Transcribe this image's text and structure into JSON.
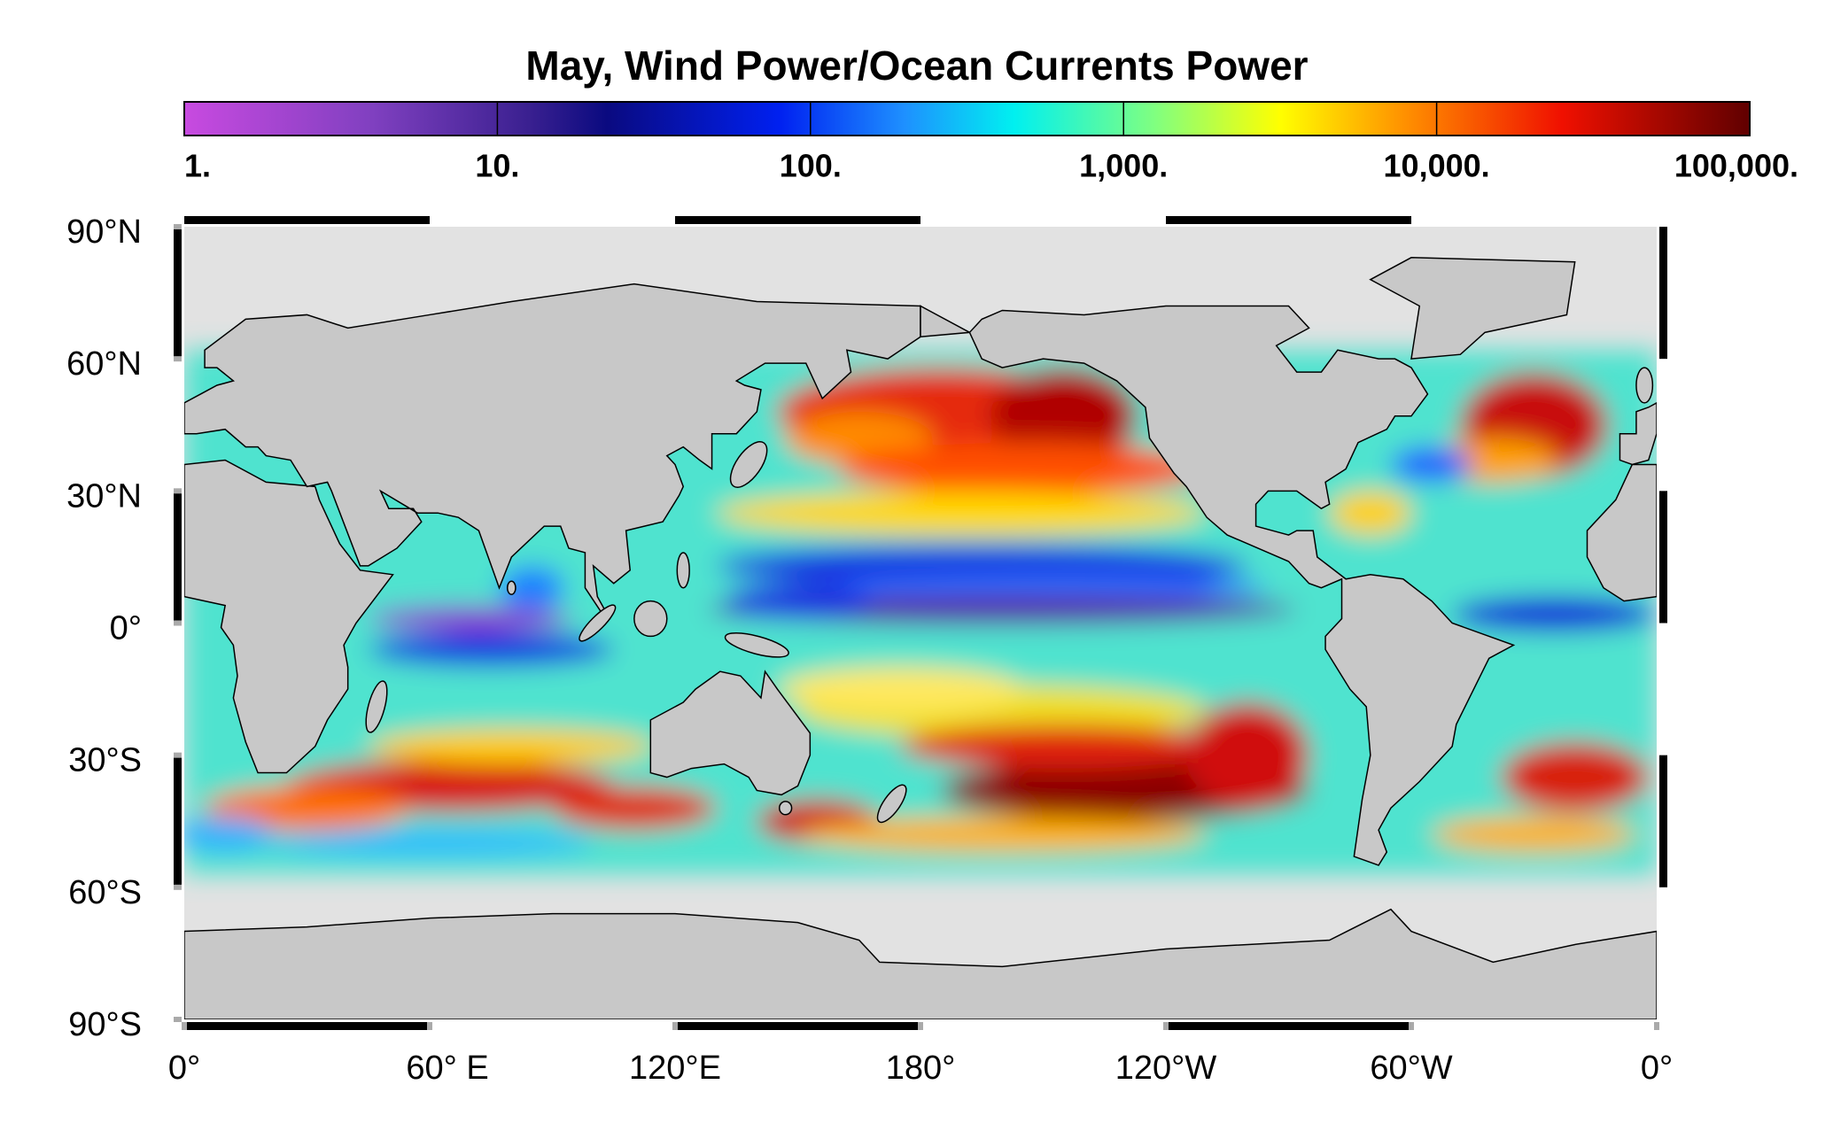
{
  "title": "May, Wind Power/Ocean Currents Power",
  "colorbar": {
    "scale": "log",
    "lim": [
      1,
      100000
    ],
    "ticks": [
      {
        "value": 1,
        "label": "1."
      },
      {
        "value": 10,
        "label": "10."
      },
      {
        "value": 100,
        "label": "100."
      },
      {
        "value": 1000,
        "label": "1,000."
      },
      {
        "value": 10000,
        "label": "10,000."
      },
      {
        "value": 100000,
        "label": "100,000."
      }
    ]
  },
  "lat_ticks": [
    {
      "value": 90,
      "label": "90°N"
    },
    {
      "value": 60,
      "label": "60°N"
    },
    {
      "value": 30,
      "label": "30°N"
    },
    {
      "value": 0,
      "label": "0°"
    },
    {
      "value": -30,
      "label": "30°S"
    },
    {
      "value": -60,
      "label": "60°S"
    },
    {
      "value": -90,
      "label": "90°S"
    }
  ],
  "lon_ticks": [
    {
      "value": 0,
      "label": "0°"
    },
    {
      "value": 60,
      "label": "60° E"
    },
    {
      "value": 120,
      "label": "120°E"
    },
    {
      "value": 180,
      "label": "180°"
    },
    {
      "value": 240,
      "label": "120°W"
    },
    {
      "value": 300,
      "label": "60°W"
    },
    {
      "value": 360,
      "label": "0°"
    }
  ]
}
